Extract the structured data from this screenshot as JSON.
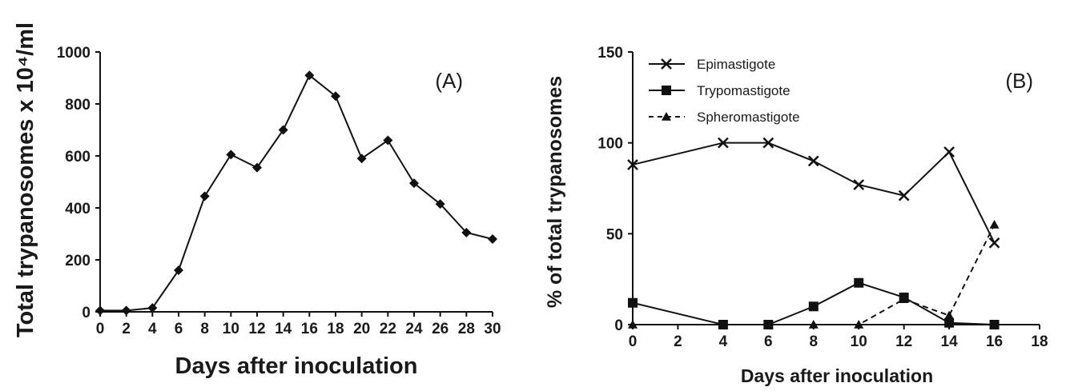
{
  "chart_data": [
    {
      "type": "line",
      "panel_label": "(A)",
      "xlabel": "Days after inoculation",
      "ylabel": "Total trypanosomes x 10⁴/ml",
      "xlim": [
        0,
        30
      ],
      "ylim": [
        0,
        1000
      ],
      "x_ticks": [
        "0",
        "2",
        "4",
        "6",
        "8",
        "10",
        "12",
        "14",
        "16",
        "18",
        "20",
        "22",
        "24",
        "26",
        "28",
        "30"
      ],
      "y_ticks": [
        "0",
        "200",
        "400",
        "600",
        "800",
        "1000"
      ],
      "grid": false,
      "series": [
        {
          "marker": "diamond",
          "dash": "solid",
          "x": [
            0,
            2,
            4,
            6,
            8,
            10,
            12,
            14,
            16,
            18,
            20,
            22,
            24,
            26,
            28,
            30
          ],
          "y": [
            5,
            5,
            15,
            160,
            445,
            605,
            555,
            700,
            910,
            830,
            590,
            660,
            495,
            415,
            305,
            280
          ]
        }
      ]
    },
    {
      "type": "line",
      "panel_label": "(B)",
      "xlabel": "Days after inoculation",
      "ylabel": "% of total trypanosomes",
      "xlim": [
        0,
        18
      ],
      "ylim": [
        0,
        150
      ],
      "x_ticks": [
        "0",
        "2",
        "4",
        "6",
        "8",
        "10",
        "12",
        "14",
        "16",
        "18"
      ],
      "y_ticks": [
        "0",
        "50",
        "100",
        "150"
      ],
      "grid": false,
      "legend": "top-left",
      "series": [
        {
          "name": "Epimastigote",
          "marker": "x",
          "dash": "solid",
          "x": [
            0,
            4,
            6,
            8,
            10,
            12,
            14,
            16
          ],
          "y": [
            88,
            100,
            100,
            90,
            77,
            71,
            95,
            45
          ]
        },
        {
          "name": "Trypomastigote",
          "marker": "square",
          "dash": "solid",
          "x": [
            0,
            4,
            6,
            8,
            10,
            12,
            14,
            16
          ],
          "y": [
            12,
            0,
            0,
            10,
            23,
            15,
            1,
            0
          ]
        },
        {
          "name": "Spheromastigote",
          "marker": "triangle",
          "dash": "dashed",
          "x": [
            0,
            4,
            6,
            8,
            10,
            12,
            14,
            16
          ],
          "y": [
            0,
            0,
            0,
            0,
            0,
            14,
            5,
            55
          ]
        }
      ]
    }
  ]
}
